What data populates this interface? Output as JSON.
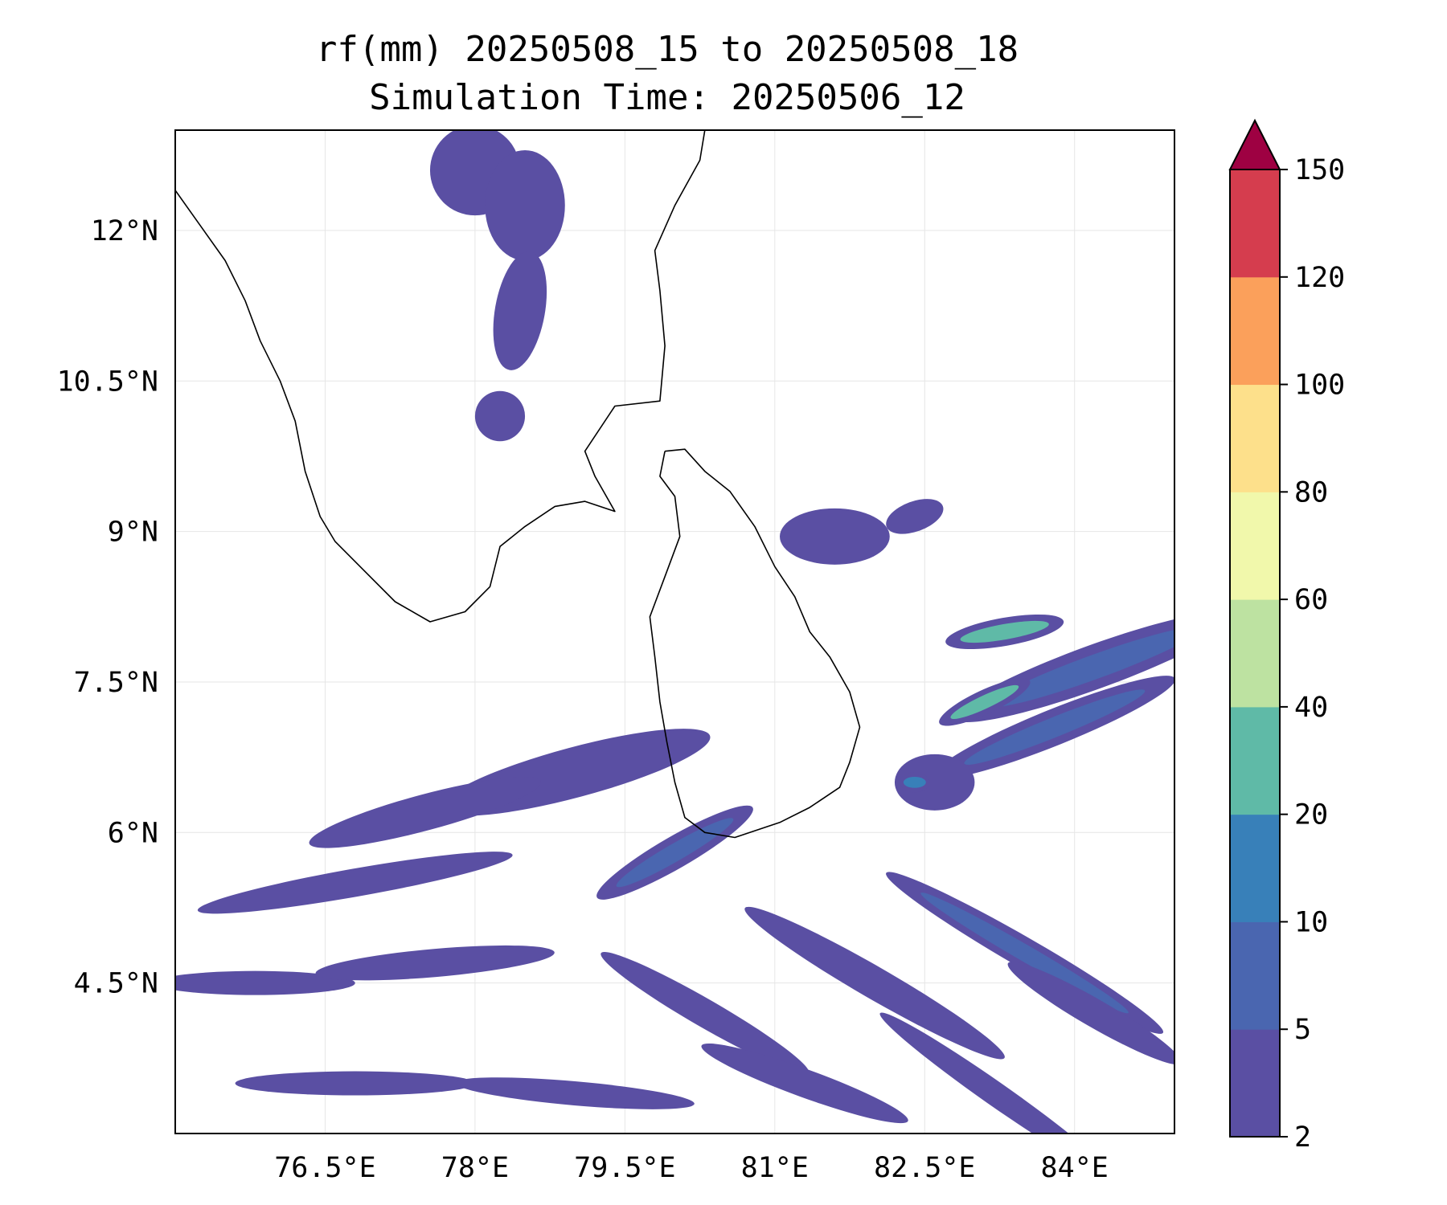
{
  "title": {
    "line1": "rf(mm) 20250508_15 to 20250508_18",
    "line2": "Simulation Time: 20250506_12"
  },
  "map": {
    "lon_range": [
      75.0,
      85.0
    ],
    "lat_range": [
      3.0,
      13.0
    ],
    "gridlines": true,
    "xticks": [
      {
        "value": 76.5,
        "label": "76.5°E"
      },
      {
        "value": 78.0,
        "label": "78°E"
      },
      {
        "value": 79.5,
        "label": "79.5°E"
      },
      {
        "value": 81.0,
        "label": "81°E"
      },
      {
        "value": 82.5,
        "label": "82.5°E"
      },
      {
        "value": 84.0,
        "label": "84°E"
      }
    ],
    "yticks": [
      {
        "value": 12.0,
        "label": "12°N"
      },
      {
        "value": 10.5,
        "label": "10.5°N"
      },
      {
        "value": 9.0,
        "label": "9°N"
      },
      {
        "value": 7.5,
        "label": "7.5°N"
      },
      {
        "value": 6.0,
        "label": "6°N"
      },
      {
        "value": 4.5,
        "label": "4.5°N"
      }
    ],
    "coastline_color": "#000000",
    "india_coast": [
      [
        75.0,
        12.4
      ],
      [
        75.25,
        12.05
      ],
      [
        75.5,
        11.7
      ],
      [
        75.7,
        11.3
      ],
      [
        75.85,
        10.9
      ],
      [
        76.05,
        10.5
      ],
      [
        76.2,
        10.1
      ],
      [
        76.3,
        9.6
      ],
      [
        76.45,
        9.15
      ],
      [
        76.6,
        8.9
      ],
      [
        76.9,
        8.6
      ],
      [
        77.2,
        8.3
      ],
      [
        77.55,
        8.1
      ],
      [
        77.9,
        8.2
      ],
      [
        78.15,
        8.45
      ],
      [
        78.25,
        8.85
      ],
      [
        78.5,
        9.05
      ],
      [
        78.8,
        9.25
      ],
      [
        79.1,
        9.3
      ],
      [
        79.4,
        9.2
      ],
      [
        79.2,
        9.55
      ],
      [
        79.1,
        9.8
      ],
      [
        79.4,
        10.25
      ],
      [
        79.85,
        10.3
      ],
      [
        79.9,
        10.85
      ],
      [
        79.85,
        11.4
      ],
      [
        79.8,
        11.8
      ],
      [
        80.0,
        12.25
      ],
      [
        80.25,
        12.7
      ],
      [
        80.3,
        13.0
      ]
    ],
    "sri_lanka_coast": [
      [
        79.9,
        9.8
      ],
      [
        80.1,
        9.82
      ],
      [
        80.3,
        9.6
      ],
      [
        80.55,
        9.4
      ],
      [
        80.8,
        9.05
      ],
      [
        81.0,
        8.65
      ],
      [
        81.2,
        8.35
      ],
      [
        81.35,
        8.0
      ],
      [
        81.55,
        7.75
      ],
      [
        81.75,
        7.4
      ],
      [
        81.85,
        7.05
      ],
      [
        81.75,
        6.7
      ],
      [
        81.65,
        6.45
      ],
      [
        81.35,
        6.25
      ],
      [
        81.05,
        6.1
      ],
      [
        80.6,
        5.95
      ],
      [
        80.3,
        6.0
      ],
      [
        80.1,
        6.15
      ],
      [
        80.0,
        6.5
      ],
      [
        79.92,
        6.9
      ],
      [
        79.85,
        7.3
      ],
      [
        79.8,
        7.75
      ],
      [
        79.75,
        8.15
      ],
      [
        79.9,
        8.55
      ],
      [
        80.05,
        8.95
      ],
      [
        80.0,
        9.35
      ],
      [
        79.85,
        9.55
      ],
      [
        79.9,
        9.8
      ]
    ],
    "rain_patches": [
      {
        "lon": 78.0,
        "lat": 12.6,
        "rx": 0.45,
        "ry": 0.45,
        "angle": 0,
        "level": 0
      },
      {
        "lon": 78.5,
        "lat": 12.25,
        "rx": 0.4,
        "ry": 0.55,
        "angle": 0,
        "level": 0
      },
      {
        "lon": 78.45,
        "lat": 11.2,
        "rx": 0.25,
        "ry": 0.6,
        "angle": 10,
        "level": 0
      },
      {
        "lon": 78.25,
        "lat": 10.15,
        "rx": 0.25,
        "ry": 0.25,
        "angle": 0,
        "level": 0
      },
      {
        "lon": 81.6,
        "lat": 8.95,
        "rx": 0.55,
        "ry": 0.28,
        "angle": 0,
        "level": 0
      },
      {
        "lon": 82.4,
        "lat": 9.15,
        "rx": 0.3,
        "ry": 0.15,
        "angle": -20,
        "level": 0
      },
      {
        "lon": 84.2,
        "lat": 7.65,
        "rx": 1.5,
        "ry": 0.22,
        "angle": -20,
        "level": 1
      },
      {
        "lon": 83.3,
        "lat": 8.0,
        "rx": 0.6,
        "ry": 0.14,
        "angle": -10,
        "level": 3
      },
      {
        "lon": 83.8,
        "lat": 7.05,
        "rx": 1.3,
        "ry": 0.18,
        "angle": -22,
        "level": 1
      },
      {
        "lon": 83.1,
        "lat": 7.3,
        "rx": 0.5,
        "ry": 0.12,
        "angle": -25,
        "level": 3
      },
      {
        "lon": 82.6,
        "lat": 6.5,
        "rx": 0.4,
        "ry": 0.28,
        "angle": 0,
        "level": 0
      },
      {
        "lon": 82.4,
        "lat": 6.5,
        "rx": 0.15,
        "ry": 0.1,
        "angle": 0,
        "level": 2
      },
      {
        "lon": 79.0,
        "lat": 6.6,
        "rx": 1.4,
        "ry": 0.25,
        "angle": -15,
        "level": 0
      },
      {
        "lon": 77.5,
        "lat": 6.2,
        "rx": 1.2,
        "ry": 0.18,
        "angle": -15,
        "level": 0
      },
      {
        "lon": 76.8,
        "lat": 5.5,
        "rx": 1.6,
        "ry": 0.14,
        "angle": -10,
        "level": 0
      },
      {
        "lon": 80.0,
        "lat": 5.8,
        "rx": 0.9,
        "ry": 0.16,
        "angle": -30,
        "level": 1
      },
      {
        "lon": 75.8,
        "lat": 4.5,
        "rx": 1.0,
        "ry": 0.12,
        "angle": 0,
        "level": 0
      },
      {
        "lon": 77.6,
        "lat": 4.7,
        "rx": 1.2,
        "ry": 0.14,
        "angle": -5,
        "level": 0
      },
      {
        "lon": 80.3,
        "lat": 4.2,
        "rx": 1.2,
        "ry": 0.14,
        "angle": 30,
        "level": 0
      },
      {
        "lon": 82.0,
        "lat": 4.5,
        "rx": 1.5,
        "ry": 0.16,
        "angle": 30,
        "level": 0
      },
      {
        "lon": 83.5,
        "lat": 4.8,
        "rx": 1.6,
        "ry": 0.15,
        "angle": 30,
        "level": 1
      },
      {
        "lon": 84.2,
        "lat": 4.2,
        "rx": 1.0,
        "ry": 0.14,
        "angle": 30,
        "level": 0
      },
      {
        "lon": 76.8,
        "lat": 3.5,
        "rx": 1.2,
        "ry": 0.12,
        "angle": 0,
        "level": 0
      },
      {
        "lon": 79.0,
        "lat": 3.4,
        "rx": 1.2,
        "ry": 0.12,
        "angle": 5,
        "level": 0
      },
      {
        "lon": 81.3,
        "lat": 3.5,
        "rx": 1.1,
        "ry": 0.14,
        "angle": 20,
        "level": 0
      },
      {
        "lon": 83.2,
        "lat": 3.4,
        "rx": 1.4,
        "ry": 0.12,
        "angle": 35,
        "level": 0
      }
    ]
  },
  "colorbar": {
    "bounds": [
      2,
      5,
      10,
      20,
      40,
      60,
      80,
      100,
      120,
      150
    ],
    "labels": [
      "2",
      "5",
      "10",
      "20",
      "40",
      "60",
      "80",
      "100",
      "120",
      "150"
    ],
    "colors": [
      "#5a4fa3",
      "#4a66b0",
      "#3880b9",
      "#5fbaa7",
      "#bde2a1",
      "#f1f8ab",
      "#fde08b",
      "#fba05b",
      "#d53d4e"
    ],
    "extend_color": "#9e0142"
  }
}
